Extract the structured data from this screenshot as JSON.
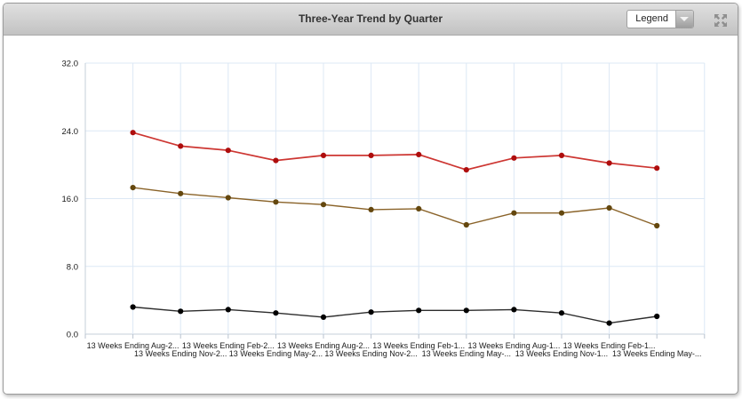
{
  "window": {
    "title": "Three-Year Trend by Quarter"
  },
  "toolbar": {
    "legend_label": "Legend"
  },
  "chart_data": {
    "type": "line",
    "title": "Three-Year Trend by Quarter",
    "categories": [
      "13 Weeks Ending Aug-2...",
      "13 Weeks Ending Nov-2...",
      "13 Weeks Ending Feb-2...",
      "13 Weeks Ending May-2...",
      "13 Weeks Ending Aug-2...",
      "13 Weeks Ending Nov-2...",
      "13 Weeks Ending Feb-1...",
      "13 Weeks Ending May-...",
      "13 Weeks Ending Aug-1...",
      "13 Weeks Ending Nov-1...",
      "13 Weeks Ending Feb-1...",
      "13 Weeks Ending May-..."
    ],
    "series": [
      {
        "name": "red-series",
        "line_color": "#cd3632",
        "marker_color": "#ae0d0d",
        "values": [
          23.8,
          22.2,
          21.7,
          20.5,
          21.1,
          21.1,
          21.2,
          19.4,
          20.8,
          21.1,
          20.2,
          19.6
        ]
      },
      {
        "name": "brown-series",
        "line_color": "#8a6329",
        "marker_color": "#64470e",
        "values": [
          17.3,
          16.6,
          16.1,
          15.6,
          15.3,
          14.7,
          14.8,
          12.9,
          14.3,
          14.3,
          14.9,
          12.8
        ]
      },
      {
        "name": "black-series",
        "line_color": "#2d2d2d",
        "marker_color": "#000000",
        "values": [
          3.2,
          2.7,
          2.9,
          2.5,
          2.0,
          2.6,
          2.8,
          2.8,
          2.9,
          2.5,
          1.3,
          2.1
        ]
      }
    ],
    "ylim": [
      0,
      32
    ],
    "yticks": [
      0,
      8,
      16,
      24,
      32
    ],
    "ytick_labels": [
      "0.0",
      "8.0",
      "16.0",
      "24.0",
      "32.0"
    ],
    "grid": true,
    "x_label_stagger": true,
    "legend_position": "dropdown-collapsed",
    "colors": {
      "grid": "#dce8f5",
      "axis": "#c6cfd9",
      "tick": "#b9c3cf",
      "label": "#1a1a1a"
    }
  }
}
